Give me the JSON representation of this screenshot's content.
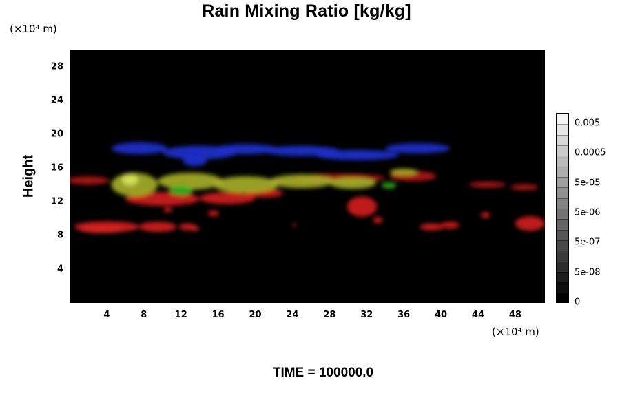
{
  "chart_data": {
    "type": "heatmap",
    "title": "Rain Mixing Ratio [kg/kg]",
    "xlabel": "",
    "ylabel": "Height",
    "x_unit": "(×10⁴ m)",
    "y_unit": "(×10⁴ m)",
    "xlim": [
      0,
      51.2
    ],
    "ylim": [
      0,
      30
    ],
    "xticks": [
      "4",
      "8",
      "12",
      "16",
      "20",
      "24",
      "28",
      "32",
      "36",
      "40",
      "44",
      "48"
    ],
    "yticks": [
      "4",
      "8",
      "12",
      "16",
      "20",
      "24",
      "28"
    ],
    "colorbar_labels": [
      "0.005",
      "0.0005",
      "5e-05",
      "5e-06",
      "5e-07",
      "5e-08",
      "0"
    ],
    "footer": "TIME = 100000.0",
    "layers": [
      {
        "color": "#2030d0",
        "blobs": [
          {
            "x": 7.5,
            "y": 18.3,
            "w": 6.0,
            "h": 1.4
          },
          {
            "x": 14.0,
            "y": 17.8,
            "w": 8.0,
            "h": 1.6
          },
          {
            "x": 19.0,
            "y": 18.2,
            "w": 7.0,
            "h": 1.2
          },
          {
            "x": 25.0,
            "y": 18.0,
            "w": 8.0,
            "h": 1.2
          },
          {
            "x": 31.0,
            "y": 17.5,
            "w": 9.0,
            "h": 1.2
          },
          {
            "x": 37.5,
            "y": 18.3,
            "w": 7.0,
            "h": 1.2
          },
          {
            "x": 13.5,
            "y": 16.8,
            "w": 2.6,
            "h": 1.2
          }
        ]
      },
      {
        "color": "#b01818",
        "blobs": [
          {
            "x": 2.0,
            "y": 14.5,
            "w": 4.5,
            "h": 1.0
          },
          {
            "x": 29.0,
            "y": 14.8,
            "w": 10.0,
            "h": 1.0
          },
          {
            "x": 37.0,
            "y": 15.0,
            "w": 5.0,
            "h": 1.2
          },
          {
            "x": 45.0,
            "y": 14.0,
            "w": 4.0,
            "h": 0.7
          },
          {
            "x": 49.0,
            "y": 13.7,
            "w": 3.0,
            "h": 0.7
          }
        ]
      },
      {
        "color": "#d42020",
        "blobs": [
          {
            "x": 10.0,
            "y": 12.3,
            "w": 8.0,
            "h": 1.6
          },
          {
            "x": 17.0,
            "y": 12.4,
            "w": 6.0,
            "h": 1.4
          },
          {
            "x": 21.0,
            "y": 13.0,
            "w": 4.0,
            "h": 1.0
          },
          {
            "x": 31.5,
            "y": 11.4,
            "w": 3.2,
            "h": 2.4
          },
          {
            "x": 4.0,
            "y": 9.0,
            "w": 7.0,
            "h": 1.3
          },
          {
            "x": 9.5,
            "y": 9.0,
            "w": 4.0,
            "h": 1.2
          },
          {
            "x": 12.7,
            "y": 9.0,
            "w": 1.8,
            "h": 0.8
          },
          {
            "x": 3.5,
            "y": 8.7,
            "w": 5.0,
            "h": 0.9
          },
          {
            "x": 15.5,
            "y": 10.6,
            "w": 1.2,
            "h": 0.7
          },
          {
            "x": 13.5,
            "y": 8.8,
            "w": 1.0,
            "h": 0.6
          },
          {
            "x": 39.0,
            "y": 9.0,
            "w": 2.6,
            "h": 0.8
          },
          {
            "x": 41.0,
            "y": 9.2,
            "w": 2.0,
            "h": 0.8
          },
          {
            "x": 44.8,
            "y": 10.4,
            "w": 1.0,
            "h": 0.7
          },
          {
            "x": 49.6,
            "y": 9.4,
            "w": 3.2,
            "h": 1.7
          },
          {
            "x": 33.2,
            "y": 9.8,
            "w": 1.0,
            "h": 0.8
          },
          {
            "x": 10.6,
            "y": 11.0,
            "w": 1.0,
            "h": 0.6
          },
          {
            "x": 24.2,
            "y": 9.2,
            "w": 0.4,
            "h": 0.4
          }
        ]
      },
      {
        "color": "#a8b02a",
        "blobs": [
          {
            "x": 7.0,
            "y": 14.0,
            "w": 5.0,
            "h": 2.8
          },
          {
            "x": 13.0,
            "y": 14.4,
            "w": 7.0,
            "h": 2.0
          },
          {
            "x": 19.0,
            "y": 14.0,
            "w": 7.0,
            "h": 2.0
          },
          {
            "x": 25.0,
            "y": 14.4,
            "w": 7.0,
            "h": 1.6
          },
          {
            "x": 30.5,
            "y": 14.2,
            "w": 5.0,
            "h": 1.4
          },
          {
            "x": 36.0,
            "y": 15.5,
            "w": 3.0,
            "h": 0.8
          }
        ]
      },
      {
        "color": "#30b020",
        "blobs": [
          {
            "x": 12.0,
            "y": 13.3,
            "w": 2.6,
            "h": 1.2
          },
          {
            "x": 34.4,
            "y": 13.9,
            "w": 1.6,
            "h": 0.7
          }
        ]
      },
      {
        "color": "#d8e060",
        "blobs": [
          {
            "x": 6.5,
            "y": 14.6,
            "w": 1.8,
            "h": 1.4
          }
        ]
      }
    ]
  }
}
